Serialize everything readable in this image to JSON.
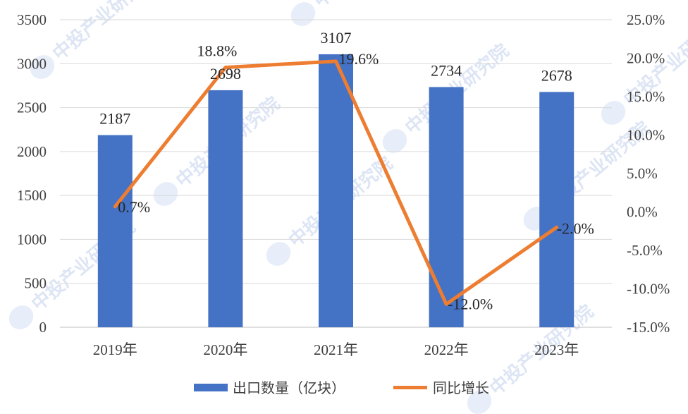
{
  "chart_data": {
    "type": "bar",
    "categories": [
      "2019年",
      "2020年",
      "2021年",
      "2022年",
      "2023年"
    ],
    "series": [
      {
        "name": "出口数量（亿块）",
        "type": "bar",
        "axis": "left",
        "color": "#4472C4",
        "values": [
          2187,
          2698,
          3107,
          2734,
          2678
        ],
        "labels": [
          "2187",
          "2698",
          "3107",
          "2734",
          "2678"
        ]
      },
      {
        "name": "同比增长",
        "type": "line",
        "axis": "right",
        "color": "#ED7D31",
        "values": [
          0.7,
          18.8,
          19.6,
          -12.0,
          -2.0
        ],
        "labels": [
          "0.7%",
          "18.8%",
          "19.6%",
          "-12.0%",
          "-2.0%"
        ]
      }
    ],
    "y_left": {
      "ylim": [
        0,
        3500
      ],
      "ticks": [
        0,
        500,
        1000,
        1500,
        2000,
        2500,
        3000,
        3500
      ],
      "tick_labels": [
        "0",
        "500",
        "1000",
        "1500",
        "2000",
        "2500",
        "3000",
        "3500"
      ]
    },
    "y_right": {
      "ylim": [
        -15,
        25
      ],
      "ticks": [
        -15,
        -10,
        -5,
        0,
        5,
        10,
        15,
        20,
        25
      ],
      "tick_labels": [
        "-15.0%",
        "-10.0%",
        "-5.0%",
        "0.0%",
        "5.0%",
        "10.0%",
        "15.0%",
        "20.0%",
        "25.0%"
      ]
    },
    "grid": true,
    "legend_position": "bottom",
    "watermark": "中投产业研究院"
  }
}
